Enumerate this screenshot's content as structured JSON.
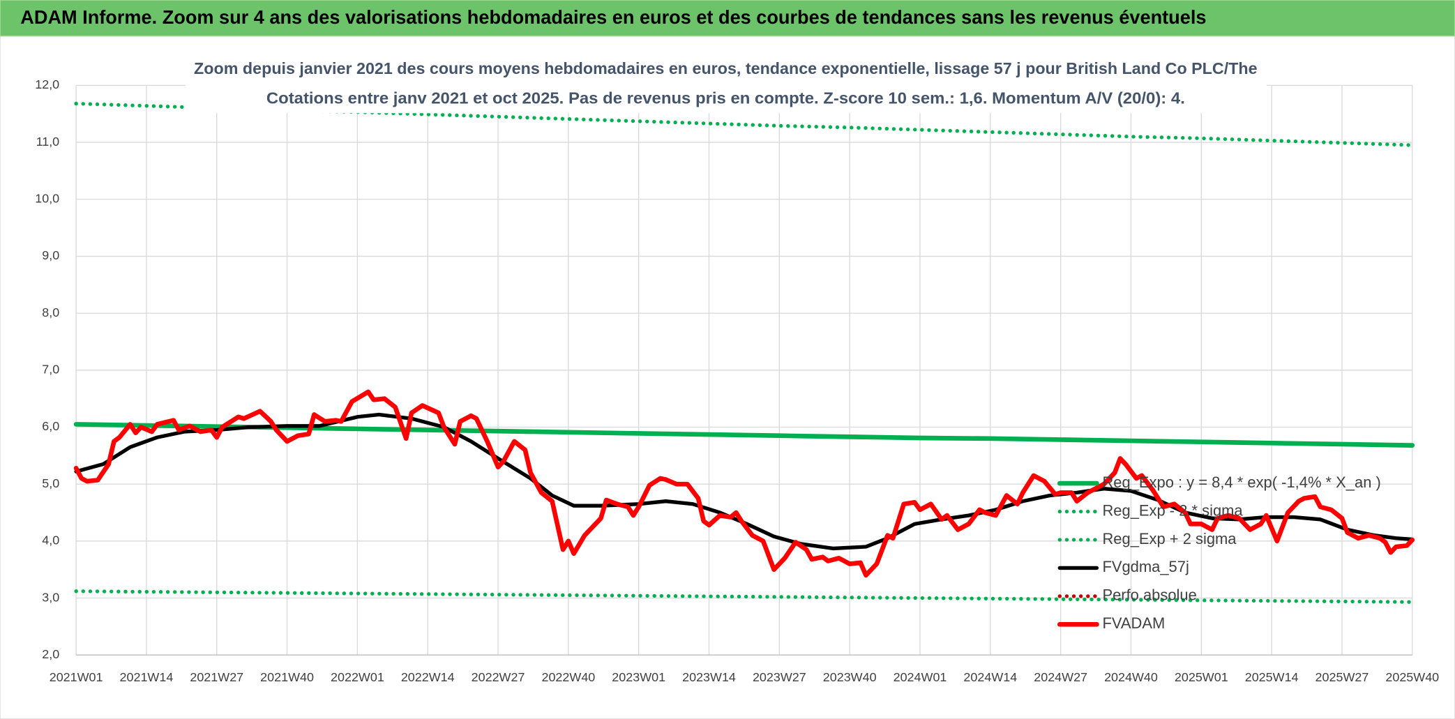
{
  "header": {
    "title": "ADAM Informe. Zoom sur 4 ans des valorisations hebdomadaires en euros et des courbes de tendances sans les revenus éventuels"
  },
  "chart_data": {
    "type": "line",
    "title": "Zoom depuis janvier 2021 des cours moyens hebdomadaires en euros, tendance exponentielle, lissage 57 j pour British Land Co PLC/The",
    "subtitle": "Cotations entre janv 2021 et oct 2025. Pas de revenus pris en compte. Z-score 10 sem.: 1,6. Momentum A/V (20/0): 4.",
    "xlim": [
      0,
      247
    ],
    "xticks": [
      {
        "value": 0,
        "label": "2021W01"
      },
      {
        "value": 13,
        "label": "2021W14"
      },
      {
        "value": 26,
        "label": "2021W27"
      },
      {
        "value": 39,
        "label": "2021W40"
      },
      {
        "value": 52,
        "label": "2022W01"
      },
      {
        "value": 65,
        "label": "2022W14"
      },
      {
        "value": 78,
        "label": "2022W27"
      },
      {
        "value": 91,
        "label": "2022W40"
      },
      {
        "value": 104,
        "label": "2023W01"
      },
      {
        "value": 117,
        "label": "2023W14"
      },
      {
        "value": 130,
        "label": "2023W27"
      },
      {
        "value": 143,
        "label": "2023W40"
      },
      {
        "value": 156,
        "label": "2024W01"
      },
      {
        "value": 169,
        "label": "2024W14"
      },
      {
        "value": 182,
        "label": "2024W27"
      },
      {
        "value": 195,
        "label": "2024W40"
      },
      {
        "value": 208,
        "label": "2025W01"
      },
      {
        "value": 221,
        "label": "2025W14"
      },
      {
        "value": 234,
        "label": "2025W27"
      },
      {
        "value": 247,
        "label": "2025W40"
      }
    ],
    "ylim": [
      2,
      12
    ],
    "yticks": [
      {
        "value": 2,
        "label": "2,0"
      },
      {
        "value": 3,
        "label": "3,0"
      },
      {
        "value": 4,
        "label": "4,0"
      },
      {
        "value": 5,
        "label": "5,0"
      },
      {
        "value": 6,
        "label": "6,0"
      },
      {
        "value": 7,
        "label": "7,0"
      },
      {
        "value": 8,
        "label": "8,0"
      },
      {
        "value": 9,
        "label": "9,0"
      },
      {
        "value": 10,
        "label": "10,0"
      },
      {
        "value": 11,
        "label": "11,0"
      },
      {
        "value": 12,
        "label": "12,0"
      }
    ],
    "grid": true,
    "legend": "right",
    "series": [
      {
        "name": "Reg_Expo : y = 8,4 * exp( -1,4% *  X_an )",
        "color": "#00b050",
        "style": "solid",
        "width": 5,
        "x": [
          0,
          13,
          26,
          39,
          52,
          65,
          78,
          91,
          104,
          117,
          130,
          143,
          156,
          169,
          182,
          195,
          208,
          221,
          234,
          247
        ],
        "values": [
          6.05,
          6.03,
          6.01,
          5.99,
          5.97,
          5.95,
          5.93,
          5.91,
          5.89,
          5.87,
          5.85,
          5.83,
          5.81,
          5.8,
          5.78,
          5.76,
          5.74,
          5.72,
          5.7,
          5.68
        ]
      },
      {
        "name": "Reg_Exp - 2 * sigma",
        "color": "#00b050",
        "style": "dotted",
        "width": 4,
        "x": [
          0,
          13,
          26,
          39,
          52,
          65,
          78,
          91,
          104,
          117,
          130,
          143,
          156,
          169,
          182,
          195,
          208,
          221,
          234,
          247
        ],
        "values": [
          3.12,
          3.11,
          3.1,
          3.09,
          3.08,
          3.07,
          3.06,
          3.05,
          3.04,
          3.03,
          3.02,
          3.01,
          3.0,
          2.99,
          2.98,
          2.97,
          2.96,
          2.95,
          2.94,
          2.93
        ]
      },
      {
        "name": "Reg_Exp + 2 sigma",
        "color": "#00b050",
        "style": "dotted",
        "width": 4,
        "x": [
          0,
          13,
          26,
          39,
          52,
          65,
          78,
          91,
          104,
          117,
          130,
          143,
          156,
          169,
          182,
          195,
          208,
          221,
          234,
          247
        ],
        "values": [
          11.68,
          11.64,
          11.6,
          11.56,
          11.53,
          11.49,
          11.45,
          11.41,
          11.37,
          11.33,
          11.29,
          11.26,
          11.22,
          11.18,
          11.14,
          11.1,
          11.07,
          11.03,
          10.99,
          10.95
        ]
      },
      {
        "name": "FVgdma_57j",
        "color": "#000000",
        "style": "solid",
        "width": 4,
        "x": [
          0,
          5,
          10,
          15,
          20,
          26,
          32,
          39,
          45,
          52,
          56,
          62,
          68,
          73,
          78,
          84,
          88,
          92,
          97,
          104,
          109,
          114,
          119,
          124,
          129,
          134,
          140,
          146,
          150,
          155,
          160,
          165,
          170,
          175,
          180,
          185,
          190,
          195,
          200,
          205,
          210,
          215,
          220,
          225,
          230,
          235,
          240,
          244,
          247
        ],
        "values": [
          5.22,
          5.35,
          5.65,
          5.82,
          5.92,
          5.95,
          6.0,
          6.02,
          6.02,
          6.18,
          6.22,
          6.15,
          6.0,
          5.75,
          5.45,
          5.1,
          4.8,
          4.62,
          4.62,
          4.65,
          4.7,
          4.65,
          4.5,
          4.3,
          4.08,
          3.95,
          3.87,
          3.9,
          4.05,
          4.3,
          4.38,
          4.45,
          4.55,
          4.7,
          4.8,
          4.85,
          4.92,
          4.88,
          4.72,
          4.5,
          4.4,
          4.38,
          4.42,
          4.42,
          4.38,
          4.2,
          4.1,
          4.05,
          4.03
        ]
      },
      {
        "name": "Perfo absolue",
        "color": "#c00000",
        "style": "dotted",
        "width": 4,
        "x": [],
        "values": []
      },
      {
        "name": "FVADAM",
        "color": "#ff0000",
        "style": "solid",
        "width": 5,
        "x": [
          0,
          1,
          2,
          4,
          6,
          7,
          8,
          10,
          11,
          12,
          14,
          15,
          18,
          19,
          21,
          23,
          25,
          26,
          27,
          30,
          31,
          34,
          36,
          37,
          39,
          41,
          43,
          44,
          46,
          48,
          49,
          51,
          54,
          55,
          57,
          59,
          61,
          62,
          64,
          67,
          68,
          70,
          71,
          73,
          74,
          76,
          78,
          79,
          81,
          83,
          84,
          86,
          88,
          90,
          91,
          92,
          94,
          97,
          98,
          100,
          102,
          103,
          104,
          106,
          108,
          109,
          111,
          113,
          115,
          116,
          117,
          119,
          121,
          122,
          123,
          125,
          127,
          129,
          131,
          133,
          135,
          136,
          138,
          139,
          141,
          143,
          145,
          146,
          148,
          150,
          151,
          153,
          155,
          156,
          158,
          160,
          161,
          163,
          165,
          167,
          168,
          170,
          172,
          174,
          175,
          177,
          179,
          181,
          182,
          184,
          185,
          187,
          190,
          192,
          193,
          194,
          196,
          197,
          199,
          201,
          203,
          205,
          206,
          208,
          210,
          211,
          213,
          215,
          217,
          219,
          220,
          222,
          224,
          226,
          227,
          229,
          230,
          232,
          234,
          235,
          237,
          239,
          241,
          242,
          243,
          244,
          246,
          247
        ],
        "values": [
          5.28,
          5.1,
          5.05,
          5.07,
          5.35,
          5.75,
          5.82,
          6.05,
          5.9,
          6.0,
          5.92,
          6.05,
          6.12,
          5.95,
          6.02,
          5.92,
          5.95,
          5.82,
          6.0,
          6.18,
          6.15,
          6.28,
          6.1,
          5.95,
          5.75,
          5.85,
          5.88,
          6.22,
          6.1,
          6.12,
          6.1,
          6.45,
          6.62,
          6.48,
          6.5,
          6.35,
          5.8,
          6.25,
          6.38,
          6.25,
          6.0,
          5.7,
          6.1,
          6.2,
          6.15,
          5.75,
          5.3,
          5.4,
          5.75,
          5.6,
          5.2,
          4.85,
          4.7,
          3.85,
          4.0,
          3.78,
          4.1,
          4.4,
          4.72,
          4.65,
          4.6,
          4.45,
          4.6,
          4.98,
          5.1,
          5.08,
          5.0,
          5.0,
          4.75,
          4.35,
          4.28,
          4.45,
          4.42,
          4.5,
          4.35,
          4.1,
          4.0,
          3.5,
          3.7,
          3.98,
          3.85,
          3.68,
          3.72,
          3.65,
          3.7,
          3.6,
          3.62,
          3.4,
          3.6,
          4.1,
          4.05,
          4.65,
          4.68,
          4.55,
          4.65,
          4.38,
          4.45,
          4.2,
          4.3,
          4.55,
          4.5,
          4.45,
          4.8,
          4.65,
          4.85,
          5.15,
          5.05,
          4.82,
          4.85,
          4.85,
          4.7,
          4.85,
          5.0,
          5.2,
          5.45,
          5.35,
          5.1,
          5.15,
          4.9,
          4.6,
          4.65,
          4.5,
          4.3,
          4.3,
          4.2,
          4.4,
          4.45,
          4.4,
          4.2,
          4.3,
          4.45,
          4.0,
          4.5,
          4.7,
          4.75,
          4.78,
          4.6,
          4.55,
          4.4,
          4.15,
          4.05,
          4.1,
          4.05,
          3.98,
          3.8,
          3.9,
          3.92,
          4.02
        ]
      }
    ]
  }
}
